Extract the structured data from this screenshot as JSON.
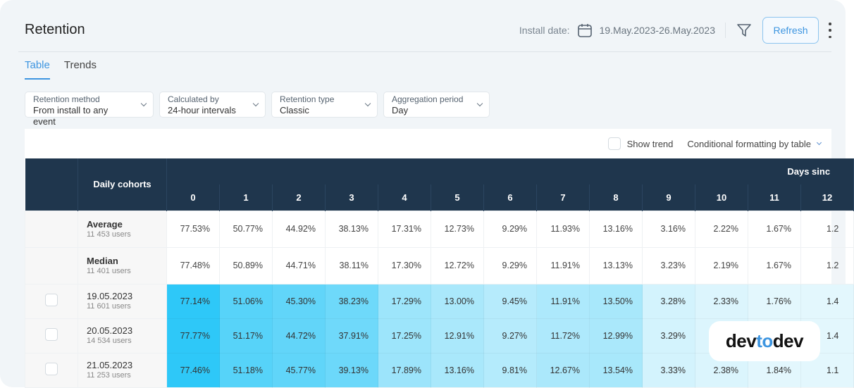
{
  "header": {
    "title": "Retention",
    "install_date_label": "Install date:",
    "date_range": "19.May.2023-26.May.2023",
    "refresh_label": "Refresh"
  },
  "tabs": [
    {
      "label": "Table",
      "active": true
    },
    {
      "label": "Trends",
      "active": false
    }
  ],
  "selects": [
    {
      "label": "Retention method",
      "value": "From install to any event"
    },
    {
      "label": "Calculated by",
      "value": "24-hour intervals"
    },
    {
      "label": "Retention type",
      "value": "Classic"
    },
    {
      "label": "Aggregation period",
      "value": "Day"
    }
  ],
  "toolbar": {
    "show_trend": "Show trend",
    "show_trend_checked": false,
    "conditional_formatting": "Conditional formatting by table"
  },
  "table": {
    "cohort_header": "Daily cohorts",
    "group_header": "Days sinc",
    "days": [
      "0",
      "1",
      "2",
      "3",
      "4",
      "5",
      "6",
      "7",
      "8",
      "9",
      "10",
      "11",
      "12"
    ],
    "summary_rows": [
      {
        "name": "Average",
        "users": "11 453 users",
        "values": [
          "77.53%",
          "50.77%",
          "44.92%",
          "38.13%",
          "17.31%",
          "12.73%",
          "9.29%",
          "11.93%",
          "13.16%",
          "3.16%",
          "2.22%",
          "1.67%",
          "1.2"
        ]
      },
      {
        "name": "Median",
        "users": "11 401 users",
        "values": [
          "77.48%",
          "50.89%",
          "44.71%",
          "38.11%",
          "17.30%",
          "12.72%",
          "9.29%",
          "11.91%",
          "13.13%",
          "3.23%",
          "2.19%",
          "1.67%",
          "1.2"
        ]
      }
    ],
    "cohort_rows": [
      {
        "name": "19.05.2023",
        "users": "11 601 users",
        "values": [
          "77.14%",
          "51.06%",
          "45.30%",
          "38.23%",
          "17.29%",
          "13.00%",
          "9.45%",
          "11.91%",
          "13.50%",
          "3.28%",
          "2.33%",
          "1.76%",
          "1.4"
        ]
      },
      {
        "name": "20.05.2023",
        "users": "14 534 users",
        "values": [
          "77.77%",
          "51.17%",
          "44.72%",
          "37.91%",
          "17.25%",
          "12.91%",
          "9.27%",
          "11.72%",
          "12.99%",
          "3.29%",
          "",
          "",
          "1.4"
        ]
      },
      {
        "name": "21.05.2023",
        "users": "11 253 users",
        "values": [
          "77.46%",
          "51.18%",
          "45.77%",
          "39.13%",
          "17.89%",
          "13.16%",
          "9.81%",
          "12.67%",
          "13.54%",
          "3.33%",
          "2.38%",
          "1.84%",
          "1.1"
        ]
      }
    ]
  },
  "colors": {
    "accent": "#3d95e0",
    "header_bg": "#1f364d",
    "heat_high": "#2ec8f8",
    "heat_low": "#e3f7fd"
  },
  "logo": {
    "text_a": "dev",
    "text_b": "to",
    "text_c": "dev"
  }
}
